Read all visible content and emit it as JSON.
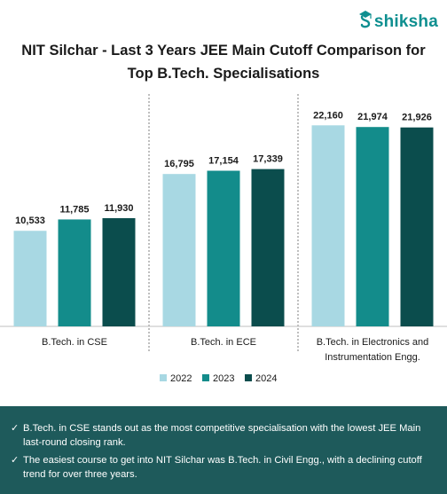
{
  "brand": {
    "name": "shiksha",
    "color": "#0e8f90"
  },
  "chart_data": {
    "type": "bar",
    "title": "NIT Silchar - Last 3 Years JEE Main Cutoff Comparison for Top B.Tech. Specialisations",
    "title_lines": [
      "NIT Silchar - Last 3 Years JEE Main Cutoff Comparison for",
      "Top B.Tech. Specialisations"
    ],
    "categories": [
      [
        "B.Tech. in CSE"
      ],
      [
        "B.Tech. in ECE"
      ],
      [
        "B.Tech. in Electronics and",
        "Instrumentation Engg."
      ]
    ],
    "series": [
      {
        "name": "2022",
        "color": "#a8d8e3",
        "values": [
          10533,
          16795,
          22160
        ],
        "labels": [
          "10,533",
          "16,795",
          "22,160"
        ]
      },
      {
        "name": "2023",
        "color": "#138c8b",
        "values": [
          11785,
          17154,
          21974
        ],
        "labels": [
          "11,785",
          "17,154",
          "21,974"
        ]
      },
      {
        "name": "2024",
        "color": "#0b4d4d",
        "values": [
          11930,
          17339,
          21926
        ],
        "labels": [
          "11,930",
          "17,339",
          "21,926"
        ]
      }
    ],
    "ylim": [
      0,
      25000
    ],
    "grid": false,
    "legend_position": "bottom",
    "xlabel": "",
    "ylabel": ""
  },
  "notes": [
    "B.Tech. in CSE stands out as the most competitive specialisation with the lowest JEE Main last-round closing rank.",
    "The easiest course to get into NIT Silchar was B.Tech. in Civil Engg., with a declining cutoff trend for over three years."
  ],
  "check_symbol": "✓",
  "colors": {
    "footer_bg": "#1e5a5b",
    "separator": "#7f7f7f"
  }
}
